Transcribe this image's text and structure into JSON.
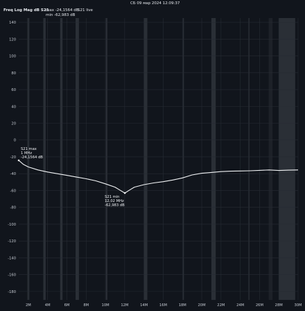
{
  "header": {
    "timestamp": "СБ 09 мар 2024 12:09:37",
    "trace_title": "Freq Log Mag dB S21",
    "max_label": "max -24,1564 dB",
    "min_label": "min -62,983 dB",
    "live_label": "S21 live"
  },
  "colors": {
    "background": "#11151c",
    "band_light": "#2a2f36",
    "band_dark": "#1d2128",
    "grid": "#262b33",
    "trace": "#f2f4f6"
  },
  "chart_data": {
    "type": "line",
    "title": "Freq Log Mag dB S21",
    "xlabel": "",
    "ylabel": "",
    "xlim": [
      1,
      30
    ],
    "ylim": [
      -190,
      145
    ],
    "grid": true,
    "x_ticks": [
      "2M",
      "4M",
      "6M",
      "8M",
      "10M",
      "12M",
      "14M",
      "16M",
      "18M",
      "20M",
      "22M",
      "24M",
      "26M",
      "28M",
      "30M"
    ],
    "x_tick_values": [
      2,
      4,
      6,
      8,
      10,
      12,
      14,
      16,
      18,
      20,
      22,
      24,
      26,
      28,
      30
    ],
    "y_ticks": [
      "140",
      "120",
      "100",
      "80",
      "60",
      "40",
      "20",
      "0",
      "-20",
      "-40",
      "-60",
      "-80",
      "-100",
      "-120",
      "-140",
      "-160",
      "-180"
    ],
    "y_tick_values": [
      140,
      120,
      100,
      80,
      60,
      40,
      20,
      0,
      -20,
      -40,
      -60,
      -80,
      -100,
      -120,
      -140,
      -160,
      -180
    ],
    "bands": [
      {
        "x0": 1.9,
        "x1": 2.1,
        "tone": "light"
      },
      {
        "x0": 3.55,
        "x1": 3.8,
        "tone": "light"
      },
      {
        "x0": 5.3,
        "x1": 5.55,
        "tone": "light"
      },
      {
        "x0": 6.9,
        "x1": 7.25,
        "tone": "light"
      },
      {
        "x0": 10.05,
        "x1": 10.2,
        "tone": "light"
      },
      {
        "x0": 14.0,
        "x1": 14.35,
        "tone": "light"
      },
      {
        "x0": 18.05,
        "x1": 18.15,
        "tone": "light"
      },
      {
        "x0": 21.0,
        "x1": 21.45,
        "tone": "light"
      },
      {
        "x0": 24.85,
        "x1": 24.95,
        "tone": "light"
      },
      {
        "x0": 26.95,
        "x1": 27.35,
        "tone": "dark"
      },
      {
        "x0": 28.0,
        "x1": 29.7,
        "tone": "light"
      }
    ],
    "series": [
      {
        "x": [
          1.0,
          1.5,
          2.0,
          3.0,
          4.0,
          5.0,
          6.0,
          7.0,
          8.0,
          9.0,
          10.0,
          11.0,
          11.5,
          12.02,
          12.5,
          13.0,
          14.0,
          15.0,
          16.0,
          17.0,
          18.0,
          19.0,
          20.0,
          21.0,
          22.0,
          23.0,
          24.0,
          25.0,
          26.0,
          27.0,
          28.0,
          29.0,
          30.0
        ],
        "y": [
          -24.16,
          -29.0,
          -32.0,
          -35.5,
          -38.0,
          -40.0,
          -42.0,
          -44.0,
          -46.0,
          -48.5,
          -52.0,
          -56.0,
          -59.5,
          -62.98,
          -59.5,
          -56.0,
          -53.0,
          -51.0,
          -49.5,
          -47.5,
          -45.0,
          -41.5,
          -39.5,
          -38.5,
          -37.5,
          -37.0,
          -36.8,
          -36.5,
          -36.0,
          -35.5,
          -36.2,
          -35.8,
          -35.5
        ]
      }
    ],
    "markers": [
      {
        "x": 1.0,
        "y": -24.16,
        "lines": [
          "S21 max",
          "1 MHz",
          "-24,1564 dB"
        ]
      },
      {
        "x": 12.02,
        "y": -62.98,
        "lines": [
          "S21 min",
          "12,02 MHz",
          "-62,983 dB"
        ]
      }
    ]
  }
}
